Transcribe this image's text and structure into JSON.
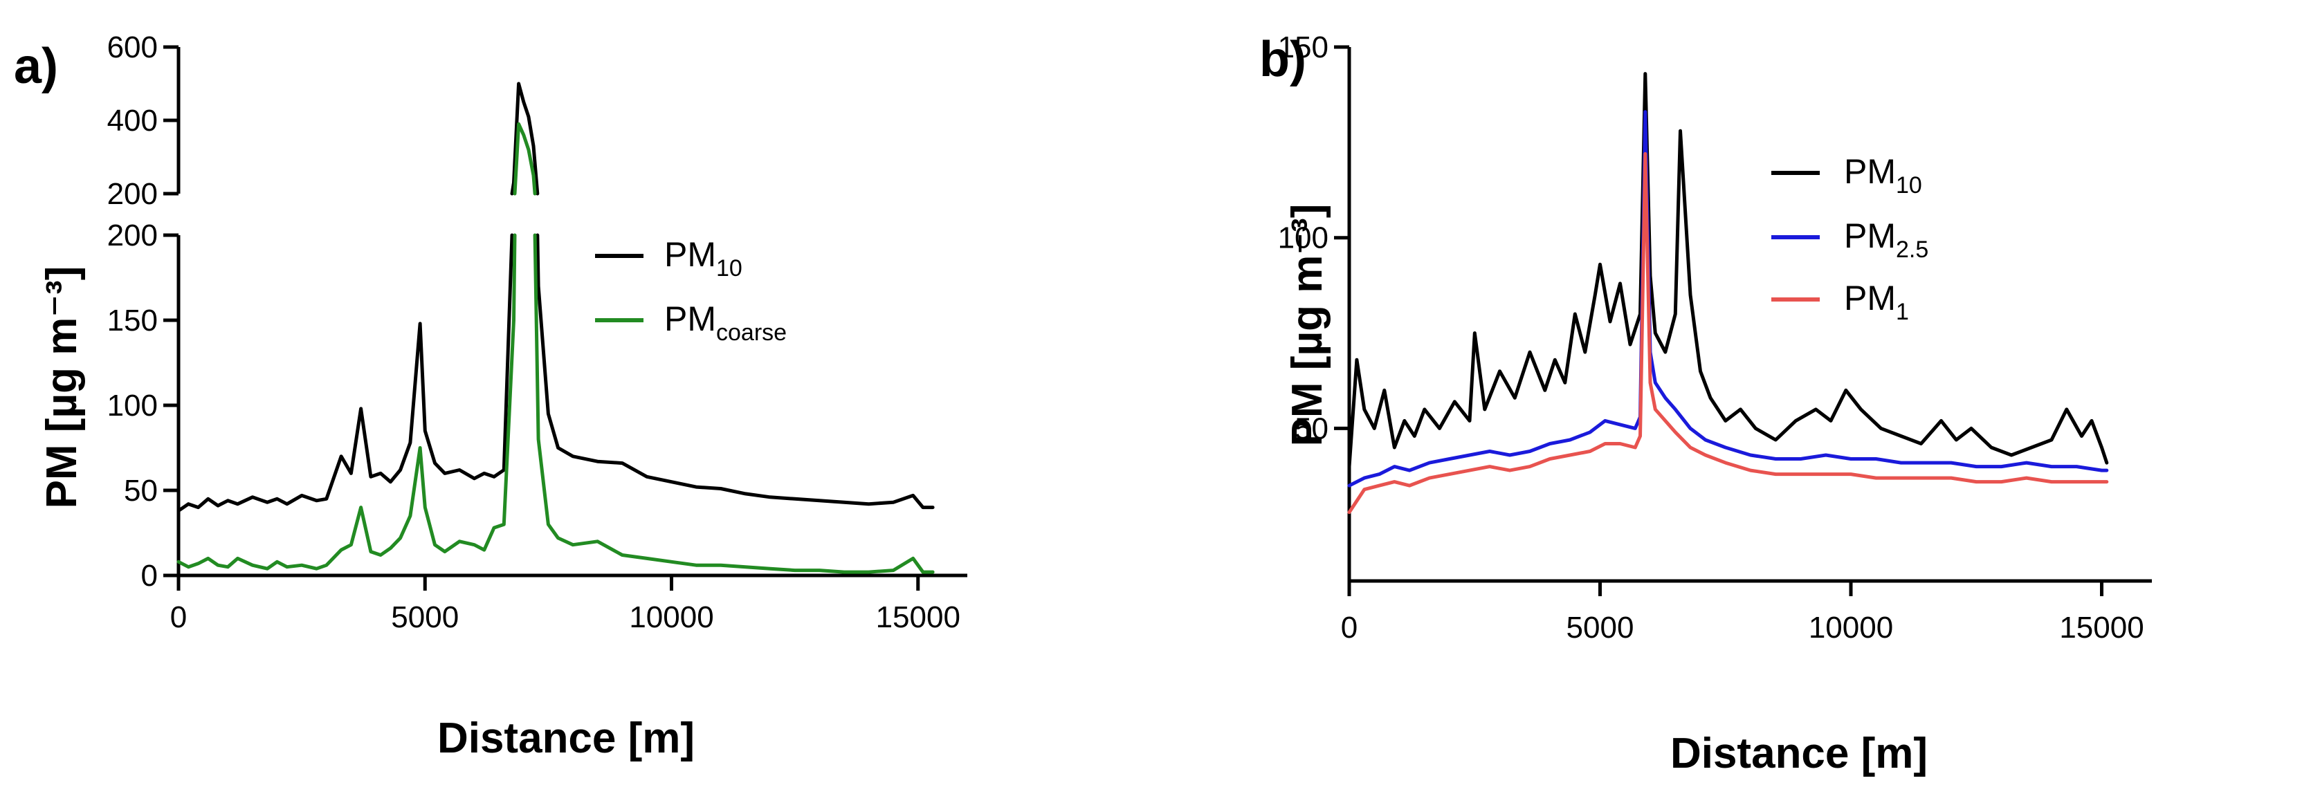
{
  "chart_data": [
    {
      "type": "line",
      "panel_label": "a)",
      "xlabel": "Distance [m]",
      "ylabel": "PM [µg m⁻³]",
      "xlim": [
        0,
        16000
      ],
      "x_ticks": [
        0,
        5000,
        10000,
        15000
      ],
      "y_axis_break": true,
      "ylim_lower": [
        0,
        200
      ],
      "y_ticks_lower": [
        0,
        50,
        100,
        150,
        200
      ],
      "ylim_upper": [
        200,
        600
      ],
      "y_ticks_upper": [
        200,
        400,
        600
      ],
      "legend_position": "center-right",
      "series": [
        {
          "name": "PM",
          "subscript": "10",
          "color": "#000000",
          "points": [
            [
              0,
              38
            ],
            [
              200,
              42
            ],
            [
              400,
              40
            ],
            [
              600,
              45
            ],
            [
              800,
              41
            ],
            [
              1000,
              44
            ],
            [
              1200,
              42
            ],
            [
              1500,
              46
            ],
            [
              1800,
              43
            ],
            [
              2000,
              45
            ],
            [
              2200,
              42
            ],
            [
              2500,
              47
            ],
            [
              2800,
              44
            ],
            [
              3000,
              45
            ],
            [
              3300,
              70
            ],
            [
              3500,
              60
            ],
            [
              3700,
              98
            ],
            [
              3900,
              58
            ],
            [
              4100,
              60
            ],
            [
              4300,
              55
            ],
            [
              4500,
              62
            ],
            [
              4700,
              78
            ],
            [
              4900,
              148
            ],
            [
              5000,
              85
            ],
            [
              5200,
              66
            ],
            [
              5400,
              60
            ],
            [
              5700,
              62
            ],
            [
              6000,
              57
            ],
            [
              6200,
              60
            ],
            [
              6400,
              58
            ],
            [
              6600,
              62
            ],
            [
              6800,
              230
            ],
            [
              6900,
              500
            ],
            [
              7000,
              450
            ],
            [
              7100,
              410
            ],
            [
              7200,
              330
            ],
            [
              7300,
              170
            ],
            [
              7500,
              95
            ],
            [
              7700,
              75
            ],
            [
              8000,
              70
            ],
            [
              8500,
              67
            ],
            [
              9000,
              66
            ],
            [
              9500,
              58
            ],
            [
              10000,
              55
            ],
            [
              10500,
              52
            ],
            [
              11000,
              51
            ],
            [
              11500,
              48
            ],
            [
              12000,
              46
            ],
            [
              12500,
              45
            ],
            [
              13000,
              44
            ],
            [
              13500,
              43
            ],
            [
              14000,
              42
            ],
            [
              14500,
              43
            ],
            [
              14900,
              47
            ],
            [
              15100,
              40
            ],
            [
              15300,
              40
            ]
          ]
        },
        {
          "name": "PM",
          "subscript": "coarse",
          "color": "#228B22",
          "points": [
            [
              0,
              8
            ],
            [
              200,
              5
            ],
            [
              400,
              7
            ],
            [
              600,
              10
            ],
            [
              800,
              6
            ],
            [
              1000,
              5
            ],
            [
              1200,
              10
            ],
            [
              1500,
              6
            ],
            [
              1800,
              4
            ],
            [
              2000,
              8
            ],
            [
              2200,
              5
            ],
            [
              2500,
              6
            ],
            [
              2800,
              4
            ],
            [
              3000,
              6
            ],
            [
              3300,
              15
            ],
            [
              3500,
              18
            ],
            [
              3700,
              40
            ],
            [
              3900,
              14
            ],
            [
              4100,
              12
            ],
            [
              4300,
              16
            ],
            [
              4500,
              22
            ],
            [
              4700,
              35
            ],
            [
              4900,
              75
            ],
            [
              5000,
              40
            ],
            [
              5200,
              18
            ],
            [
              5400,
              14
            ],
            [
              5700,
              20
            ],
            [
              6000,
              18
            ],
            [
              6200,
              15
            ],
            [
              6400,
              28
            ],
            [
              6600,
              30
            ],
            [
              6800,
              150
            ],
            [
              6900,
              390
            ],
            [
              7000,
              360
            ],
            [
              7100,
              320
            ],
            [
              7200,
              250
            ],
            [
              7300,
              80
            ],
            [
              7500,
              30
            ],
            [
              7700,
              22
            ],
            [
              8000,
              18
            ],
            [
              8500,
              20
            ],
            [
              9000,
              12
            ],
            [
              9500,
              10
            ],
            [
              10000,
              8
            ],
            [
              10500,
              6
            ],
            [
              11000,
              6
            ],
            [
              11500,
              5
            ],
            [
              12000,
              4
            ],
            [
              12500,
              3
            ],
            [
              13000,
              3
            ],
            [
              13500,
              2
            ],
            [
              14000,
              2
            ],
            [
              14500,
              3
            ],
            [
              14900,
              10
            ],
            [
              15100,
              2
            ],
            [
              15300,
              2
            ]
          ]
        }
      ]
    },
    {
      "type": "line",
      "panel_label": "b)",
      "xlabel": "Distance [m]",
      "ylabel": "PM [µg m⁻³]",
      "xlim": [
        0,
        16000
      ],
      "x_ticks": [
        0,
        5000,
        10000,
        15000
      ],
      "ylim": [
        10,
        150
      ],
      "y_ticks": [
        50,
        100,
        150
      ],
      "legend_position": "top-right",
      "series": [
        {
          "name": "PM",
          "subscript": "10",
          "color": "#000000",
          "points": [
            [
              0,
              40
            ],
            [
              150,
              68
            ],
            [
              300,
              55
            ],
            [
              500,
              50
            ],
            [
              700,
              60
            ],
            [
              900,
              45
            ],
            [
              1100,
              52
            ],
            [
              1300,
              48
            ],
            [
              1500,
              55
            ],
            [
              1800,
              50
            ],
            [
              2100,
              57
            ],
            [
              2400,
              52
            ],
            [
              2500,
              75
            ],
            [
              2700,
              55
            ],
            [
              3000,
              65
            ],
            [
              3300,
              58
            ],
            [
              3600,
              70
            ],
            [
              3900,
              60
            ],
            [
              4100,
              68
            ],
            [
              4300,
              62
            ],
            [
              4500,
              80
            ],
            [
              4700,
              70
            ],
            [
              4900,
              85
            ],
            [
              5000,
              93
            ],
            [
              5200,
              78
            ],
            [
              5400,
              88
            ],
            [
              5600,
              72
            ],
            [
              5800,
              80
            ],
            [
              5900,
              143
            ],
            [
              6000,
              90
            ],
            [
              6100,
              75
            ],
            [
              6300,
              70
            ],
            [
              6500,
              80
            ],
            [
              6600,
              128
            ],
            [
              6800,
              85
            ],
            [
              7000,
              65
            ],
            [
              7200,
              58
            ],
            [
              7500,
              52
            ],
            [
              7800,
              55
            ],
            [
              8100,
              50
            ],
            [
              8500,
              47
            ],
            [
              8900,
              52
            ],
            [
              9300,
              55
            ],
            [
              9600,
              52
            ],
            [
              9900,
              60
            ],
            [
              10200,
              55
            ],
            [
              10600,
              50
            ],
            [
              11000,
              48
            ],
            [
              11400,
              46
            ],
            [
              11800,
              52
            ],
            [
              12100,
              47
            ],
            [
              12400,
              50
            ],
            [
              12800,
              45
            ],
            [
              13200,
              43
            ],
            [
              13600,
              45
            ],
            [
              14000,
              47
            ],
            [
              14300,
              55
            ],
            [
              14600,
              48
            ],
            [
              14800,
              52
            ],
            [
              15000,
              45
            ],
            [
              15100,
              41
            ]
          ]
        },
        {
          "name": "PM",
          "subscript": "2.5",
          "color": "#1a1adb",
          "points": [
            [
              0,
              35
            ],
            [
              300,
              37
            ],
            [
              600,
              38
            ],
            [
              900,
              40
            ],
            [
              1200,
              39
            ],
            [
              1600,
              41
            ],
            [
              2000,
              42
            ],
            [
              2400,
              43
            ],
            [
              2800,
              44
            ],
            [
              3200,
              43
            ],
            [
              3600,
              44
            ],
            [
              4000,
              46
            ],
            [
              4400,
              47
            ],
            [
              4800,
              49
            ],
            [
              5100,
              52
            ],
            [
              5400,
              51
            ],
            [
              5700,
              50
            ],
            [
              5800,
              53
            ],
            [
              5900,
              133
            ],
            [
              6000,
              70
            ],
            [
              6100,
              62
            ],
            [
              6300,
              58
            ],
            [
              6500,
              55
            ],
            [
              6800,
              50
            ],
            [
              7100,
              47
            ],
            [
              7500,
              45
            ],
            [
              8000,
              43
            ],
            [
              8500,
              42
            ],
            [
              9000,
              42
            ],
            [
              9500,
              43
            ],
            [
              10000,
              42
            ],
            [
              10500,
              42
            ],
            [
              11000,
              41
            ],
            [
              11500,
              41
            ],
            [
              12000,
              41
            ],
            [
              12500,
              40
            ],
            [
              13000,
              40
            ],
            [
              13500,
              41
            ],
            [
              14000,
              40
            ],
            [
              14500,
              40
            ],
            [
              15000,
              39
            ],
            [
              15100,
              39
            ]
          ]
        },
        {
          "name": "PM",
          "subscript": "1",
          "color": "#e8534f",
          "points": [
            [
              0,
              28
            ],
            [
              300,
              34
            ],
            [
              600,
              35
            ],
            [
              900,
              36
            ],
            [
              1200,
              35
            ],
            [
              1600,
              37
            ],
            [
              2000,
              38
            ],
            [
              2400,
              39
            ],
            [
              2800,
              40
            ],
            [
              3200,
              39
            ],
            [
              3600,
              40
            ],
            [
              4000,
              42
            ],
            [
              4400,
              43
            ],
            [
              4800,
              44
            ],
            [
              5100,
              46
            ],
            [
              5400,
              46
            ],
            [
              5700,
              45
            ],
            [
              5800,
              48
            ],
            [
              5900,
              122
            ],
            [
              6000,
              62
            ],
            [
              6100,
              55
            ],
            [
              6300,
              52
            ],
            [
              6500,
              49
            ],
            [
              6800,
              45
            ],
            [
              7100,
              43
            ],
            [
              7500,
              41
            ],
            [
              8000,
              39
            ],
            [
              8500,
              38
            ],
            [
              9000,
              38
            ],
            [
              9500,
              38
            ],
            [
              10000,
              38
            ],
            [
              10500,
              37
            ],
            [
              11000,
              37
            ],
            [
              11500,
              37
            ],
            [
              12000,
              37
            ],
            [
              12500,
              36
            ],
            [
              13000,
              36
            ],
            [
              13500,
              37
            ],
            [
              14000,
              36
            ],
            [
              14500,
              36
            ],
            [
              15000,
              36
            ],
            [
              15100,
              36
            ]
          ]
        }
      ]
    }
  ]
}
